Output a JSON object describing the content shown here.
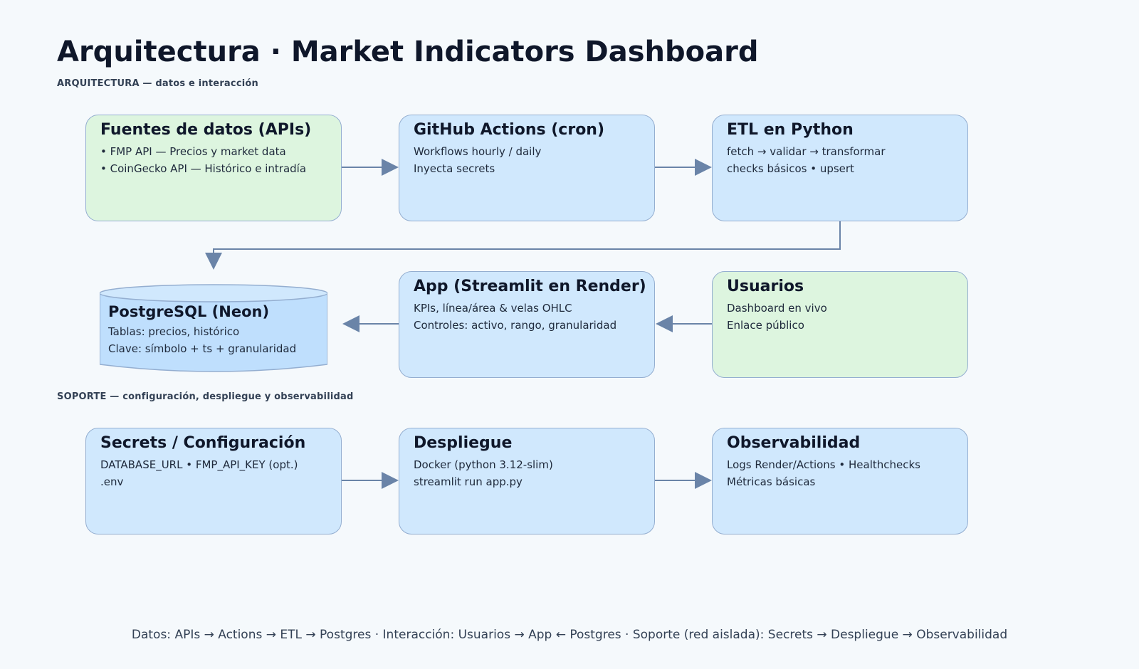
{
  "title": "Arquitectura · Market Indicators Dashboard",
  "sections": {
    "architecture": "ARQUITECTURA — datos e interacción",
    "support": "SOPORTE — configuración, despliegue y observabilidad"
  },
  "nodes": {
    "sources": {
      "title": "Fuentes de datos (APIs)",
      "lines": [
        "• FMP API — Precios y market data",
        "• CoinGecko API — Histórico e intradía"
      ]
    },
    "actions": {
      "title": "GitHub Actions (cron)",
      "lines": [
        "Workflows hourly / daily",
        "Inyecta secrets"
      ]
    },
    "etl": {
      "title": "ETL en Python",
      "lines": [
        "fetch → validar → transformar",
        "checks básicos • upsert"
      ]
    },
    "postgres": {
      "title": "PostgreSQL (Neon)",
      "lines": [
        "Tablas: precios, histórico",
        "Clave: símbolo + ts + granularidad"
      ]
    },
    "app": {
      "title": "App (Streamlit en Render)",
      "lines": [
        "KPIs, línea/área & velas OHLC",
        "Controles: activo, rango, granularidad"
      ]
    },
    "users": {
      "title": "Usuarios",
      "lines": [
        "Dashboard en vivo",
        "Enlace público"
      ]
    },
    "secrets": {
      "title": "Secrets / Configuración",
      "lines": [
        "DATABASE_URL • FMP_API_KEY (opt.)",
        ".env"
      ]
    },
    "deploy": {
      "title": "Despliegue",
      "lines": [
        "Docker (python 3.12-slim)",
        "streamlit run app.py"
      ]
    },
    "observability": {
      "title": "Observabilidad",
      "lines": [
        "Logs Render/Actions • Healthchecks",
        "Métricas básicas"
      ]
    }
  },
  "edges": [
    {
      "from": "sources",
      "to": "actions"
    },
    {
      "from": "actions",
      "to": "etl"
    },
    {
      "from": "etl",
      "to": "postgres"
    },
    {
      "from": "app",
      "to": "postgres"
    },
    {
      "from": "users",
      "to": "app"
    },
    {
      "from": "secrets",
      "to": "deploy"
    },
    {
      "from": "deploy",
      "to": "observability"
    }
  ],
  "colors": {
    "box_blue": "#d0e8fd",
    "box_green": "#ddf5df",
    "database": "#bfdffd",
    "border": "#94aed0",
    "arrow": "#6a84a8"
  },
  "footer": "Datos: APIs → Actions → ETL → Postgres · Interacción: Usuarios → App ← Postgres · Soporte (red aislada): Secrets → Despliegue → Observabilidad"
}
